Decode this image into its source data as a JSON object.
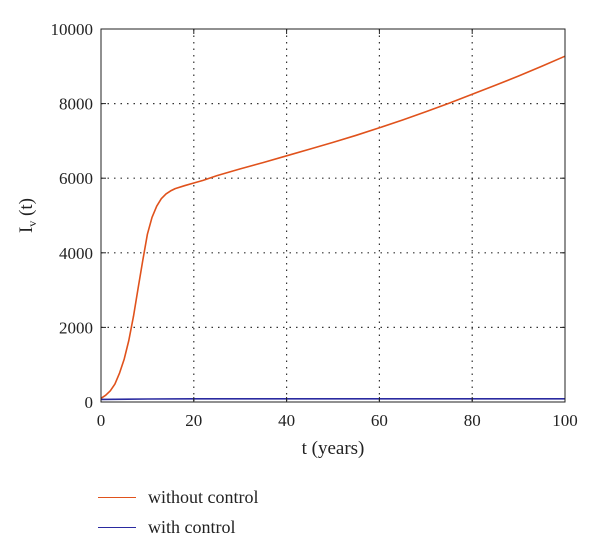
{
  "chart_data": {
    "type": "line",
    "xlabel": "t (years)",
    "ylabel": {
      "main": "I",
      "sub": "v",
      "suffix": " (t)"
    },
    "xlim": [
      0,
      100
    ],
    "ylim": [
      0,
      10000
    ],
    "xticks": [
      0,
      20,
      40,
      60,
      80,
      100
    ],
    "yticks": [
      0,
      2000,
      4000,
      6000,
      8000,
      10000
    ],
    "grid": true,
    "legend_position": "bottom-left, outside",
    "series": [
      {
        "name": "without control",
        "color": "#e0521c",
        "x": [
          0,
          1,
          2,
          3,
          4,
          5,
          6,
          7,
          8,
          9,
          10,
          11,
          12,
          13,
          14,
          15,
          16,
          18,
          20,
          22,
          25,
          30,
          35,
          40,
          45,
          50,
          55,
          60,
          65,
          70,
          75,
          80,
          85,
          90,
          95,
          100
        ],
        "y": [
          100,
          180,
          300,
          480,
          780,
          1150,
          1650,
          2300,
          3050,
          3800,
          4500,
          4950,
          5250,
          5450,
          5580,
          5660,
          5720,
          5800,
          5870,
          5940,
          6070,
          6250,
          6420,
          6600,
          6780,
          6960,
          7150,
          7350,
          7560,
          7780,
          8010,
          8250,
          8490,
          8740,
          9000,
          9270
        ]
      },
      {
        "name": "with control",
        "color": "#2a2aa0",
        "x": [
          0,
          10,
          20,
          40,
          60,
          80,
          100
        ],
        "y": [
          70,
          80,
          85,
          85,
          85,
          85,
          85
        ]
      }
    ]
  }
}
